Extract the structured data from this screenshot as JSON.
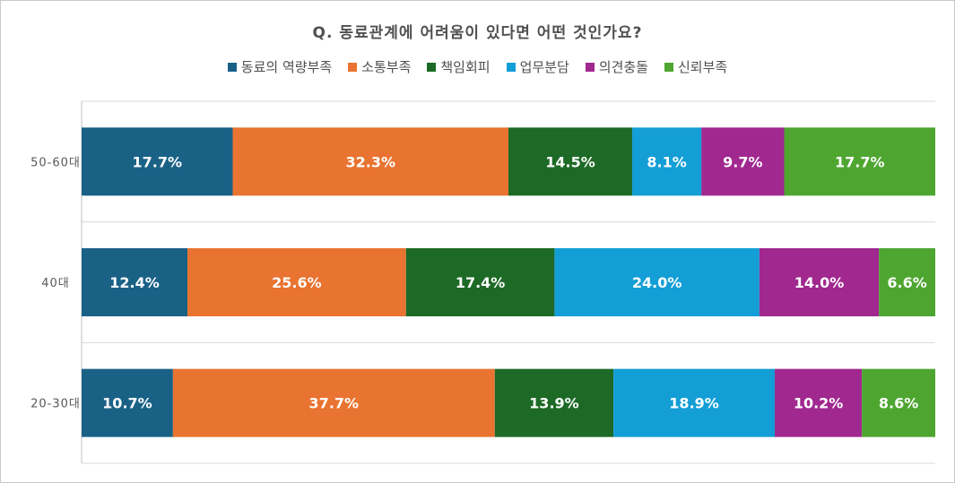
{
  "chart_data": {
    "type": "bar",
    "orientation": "horizontal",
    "stacked": "100%",
    "title": "Q. 동료관계에 어려움이 있다면 어떤 것인가요?",
    "legend_position": "top",
    "categories": [
      "50-60대",
      "40대",
      "20-30대"
    ],
    "series": [
      {
        "name": "동료의 역량부족",
        "color": "#1a6186",
        "values": [
          17.7,
          12.4,
          10.7
        ]
      },
      {
        "name": "소통부족",
        "color": "#e97330",
        "values": [
          32.3,
          25.6,
          37.7
        ]
      },
      {
        "name": "책임회피",
        "color": "#1d6a27",
        "values": [
          14.5,
          17.4,
          13.9
        ]
      },
      {
        "name": "업무분담",
        "color": "#139ed6",
        "values": [
          8.1,
          24.0,
          18.9
        ]
      },
      {
        "name": "의견충돌",
        "color": "#a0288f",
        "values": [
          9.7,
          14.0,
          10.2
        ]
      },
      {
        "name": "신뢰부족",
        "color": "#4ea631",
        "values": [
          17.7,
          6.6,
          8.6
        ]
      }
    ],
    "value_suffix": "%",
    "grid": "horizontal"
  }
}
